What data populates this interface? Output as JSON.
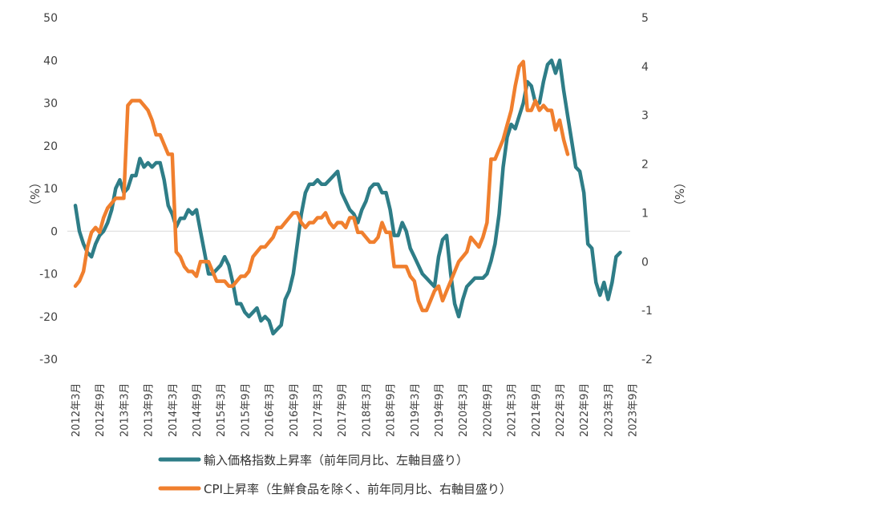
{
  "chart_data": {
    "type": "line",
    "title": "",
    "y_left": {
      "label": "（%）",
      "range": [
        -30,
        50
      ],
      "ticks": [
        50,
        40,
        30,
        20,
        10,
        0,
        -10,
        -20,
        -30
      ]
    },
    "y_right": {
      "label": "（%）",
      "range": [
        -2,
        5
      ],
      "ticks": [
        5,
        4,
        3,
        2,
        1,
        0,
        -1,
        -2
      ]
    },
    "x_tick_labels": [
      "2012年3月",
      "2012年9月",
      "2013年3月",
      "2013年9月",
      "2014年3月",
      "2014年9月",
      "2015年3月",
      "2015年9月",
      "2016年3月",
      "2016年9月",
      "2017年3月",
      "2017年9月",
      "2018年3月",
      "2018年9月",
      "2019年3月",
      "2019年9月",
      "2020年3月",
      "2020年9月",
      "2021年3月",
      "2021年9月",
      "2022年3月",
      "2022年9月",
      "2023年3月",
      "2023年9月"
    ],
    "grid": false,
    "legend_position": "bottom",
    "series": [
      {
        "name": "輸入価格指数上昇率（前年同月比、左軸目盛り）",
        "axis": "left",
        "color": "#2e7d87",
        "start_index": 0,
        "values": [
          6,
          0,
          -3,
          -5,
          -6,
          -3,
          -1,
          0,
          2,
          5,
          10,
          12,
          9,
          10,
          13,
          13,
          17,
          15,
          16,
          15,
          16,
          16,
          12,
          6,
          4,
          1,
          3,
          3,
          5,
          4,
          5,
          0,
          -5,
          -10,
          -10,
          -9,
          -8,
          -6,
          -8,
          -12,
          -17,
          -17,
          -19,
          -20,
          -19,
          -18,
          -21,
          -20,
          -21,
          -24,
          -23,
          -22,
          -16,
          -14,
          -10,
          -3,
          4,
          9,
          11,
          11,
          12,
          11,
          11,
          12,
          13,
          14,
          9,
          7,
          5,
          4,
          2,
          5,
          7,
          10,
          11,
          11,
          9,
          9,
          5,
          -1,
          -1,
          2,
          0,
          -4,
          -6,
          -8,
          -10,
          -11,
          -12,
          -13,
          -6,
          -2,
          -1,
          -10,
          -17,
          -20,
          -16,
          -13,
          -12,
          -11,
          -11,
          -11,
          -10,
          -7,
          -3,
          4,
          15,
          22,
          25,
          24,
          27,
          30,
          35,
          34,
          30,
          30,
          35,
          39,
          40,
          37,
          40,
          33,
          27,
          21,
          15,
          14,
          9,
          -3,
          -4,
          -12,
          -15,
          -12,
          -16,
          -12,
          -6,
          -5
        ]
      },
      {
        "name": "CPI上昇率（生鮮食品を除く、前年同月比、右軸目盛り）",
        "axis": "right",
        "color": "#f07f2e",
        "start_index": 0,
        "values": [
          -0.5,
          -0.4,
          -0.2,
          0.3,
          0.6,
          0.7,
          0.6,
          0.9,
          1.1,
          1.2,
          1.3,
          1.3,
          1.3,
          3.2,
          3.3,
          3.3,
          3.3,
          3.2,
          3.1,
          2.9,
          2.6,
          2.6,
          2.4,
          2.2,
          2.2,
          0.2,
          0.1,
          -0.1,
          -0.2,
          -0.2,
          -0.3,
          0.0,
          0.0,
          0.0,
          -0.2,
          -0.4,
          -0.4,
          -0.4,
          -0.5,
          -0.5,
          -0.4,
          -0.3,
          -0.3,
          -0.2,
          0.1,
          0.2,
          0.3,
          0.3,
          0.4,
          0.5,
          0.7,
          0.7,
          0.8,
          0.9,
          1.0,
          1.0,
          0.8,
          0.7,
          0.8,
          0.8,
          0.9,
          0.9,
          1.0,
          0.8,
          0.7,
          0.8,
          0.8,
          0.7,
          0.9,
          0.9,
          0.6,
          0.6,
          0.5,
          0.4,
          0.4,
          0.5,
          0.8,
          0.6,
          0.6,
          -0.1,
          -0.1,
          -0.1,
          -0.1,
          -0.3,
          -0.4,
          -0.8,
          -1.0,
          -1.0,
          -0.8,
          -0.6,
          -0.5,
          -0.8,
          -0.6,
          -0.4,
          -0.2,
          0.0,
          0.1,
          0.2,
          0.5,
          0.4,
          0.3,
          0.5,
          0.8,
          2.1,
          2.1,
          2.3,
          2.5,
          2.8,
          3.1,
          3.6,
          4.0,
          4.1,
          3.1,
          3.1,
          3.3,
          3.1,
          3.2,
          3.1,
          3.1,
          2.7,
          2.9,
          2.5,
          2.2
        ]
      }
    ]
  }
}
